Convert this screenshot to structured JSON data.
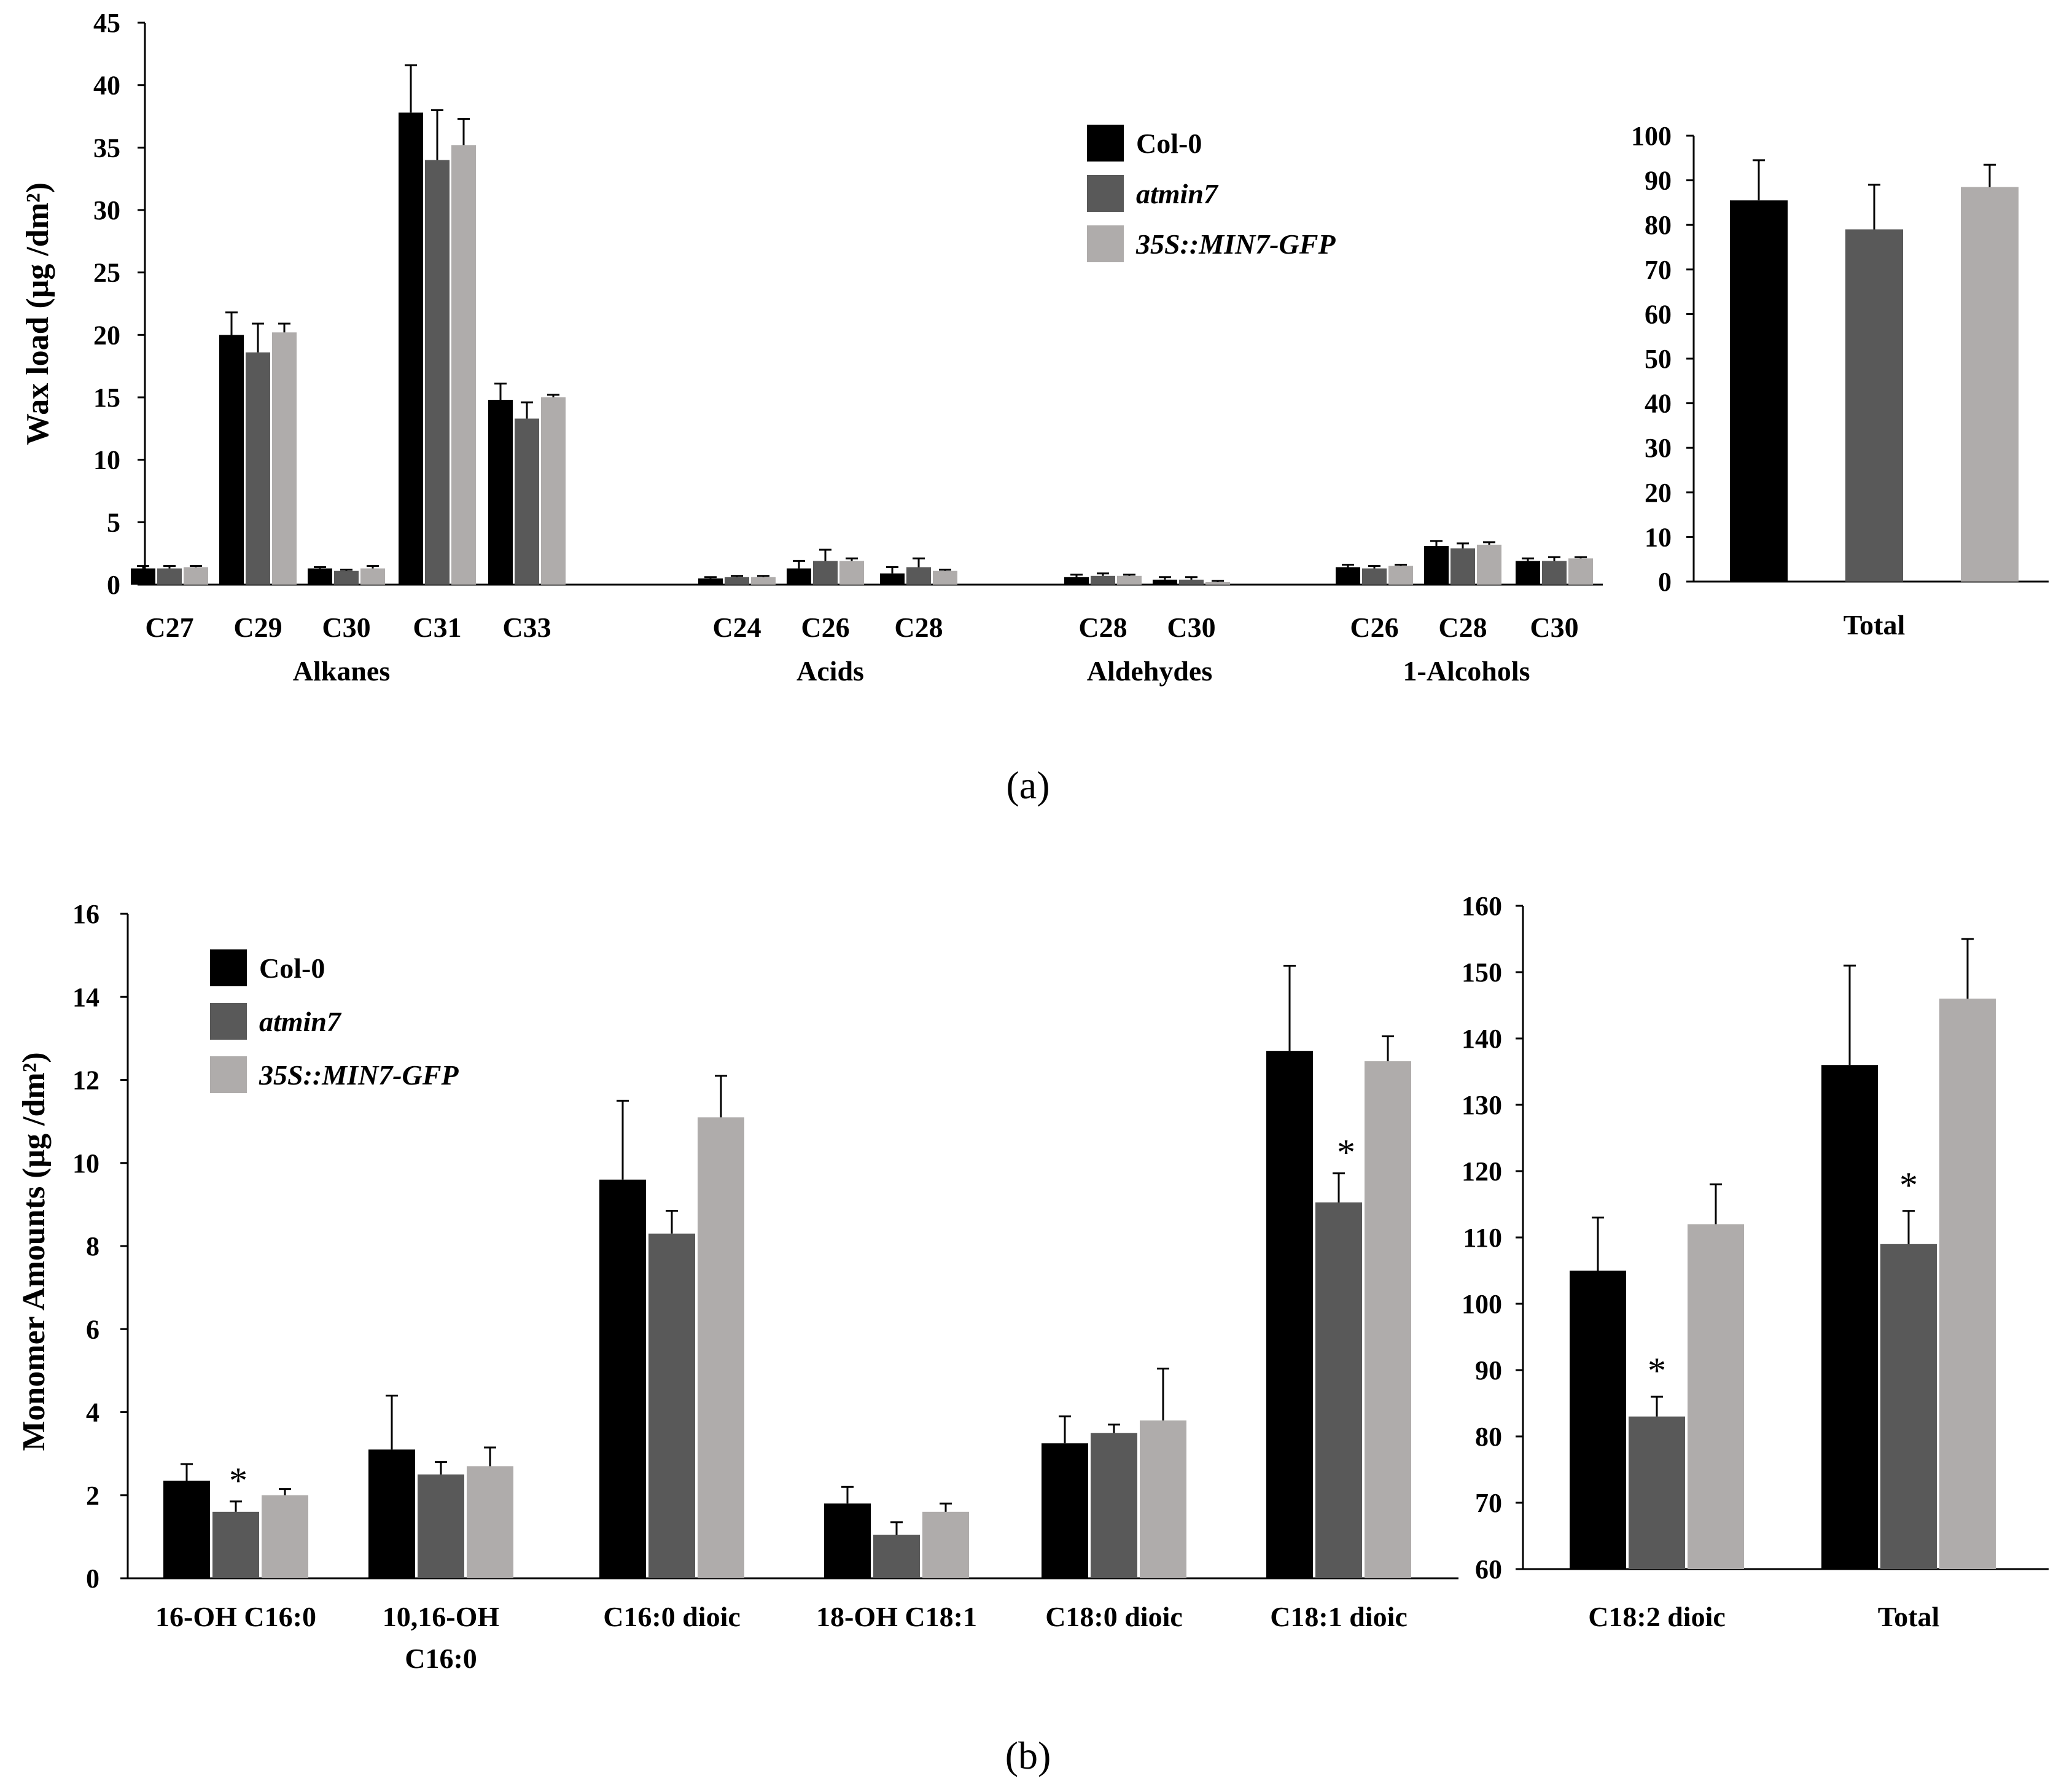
{
  "figure": {
    "panel_a_letter": "(a)",
    "panel_b_letter": "(b)"
  },
  "chart_data": [
    {
      "id": "a-main",
      "type": "bar",
      "panel": "a",
      "ylabel": "Wax load (μg /dm²)",
      "ylim": [
        0,
        45
      ],
      "yticks": [
        0,
        5,
        10,
        15,
        20,
        25,
        30,
        35,
        40,
        45
      ],
      "legend": {
        "placement": "top-center",
        "entries": [
          "Col-0",
          "atmin7",
          "35S::MIN7-GFP"
        ]
      },
      "series": [
        {
          "name": "Col-0",
          "color": "#000000"
        },
        {
          "name": "atmin7",
          "color": "#595959"
        },
        {
          "name": "35S::MIN7-GFP",
          "color": "#afacab"
        }
      ],
      "groups": [
        {
          "label": "Alkanes",
          "categories": [
            {
              "label": "C27",
              "values": [
                1.3,
                1.3,
                1.4
              ],
              "errors": [
                0.2,
                0.2,
                0.1
              ]
            },
            {
              "label": "C29",
              "values": [
                20.0,
                18.6,
                20.2
              ],
              "errors": [
                1.8,
                2.3,
                0.7
              ]
            },
            {
              "label": "C30",
              "values": [
                1.3,
                1.1,
                1.3
              ],
              "errors": [
                0.1,
                0.1,
                0.2
              ]
            },
            {
              "label": "C31",
              "values": [
                37.8,
                34.0,
                35.2
              ],
              "errors": [
                3.8,
                4.0,
                2.1
              ]
            },
            {
              "label": "C33",
              "values": [
                14.8,
                13.3,
                15.0
              ],
              "errors": [
                1.3,
                1.3,
                0.2
              ]
            }
          ]
        },
        {
          "label": "Acids",
          "categories": [
            {
              "label": "C24",
              "values": [
                0.5,
                0.6,
                0.6
              ],
              "errors": [
                0.1,
                0.1,
                0.1
              ]
            },
            {
              "label": "C26",
              "values": [
                1.3,
                1.9,
                1.9
              ],
              "errors": [
                0.6,
                0.9,
                0.2
              ]
            },
            {
              "label": "C28",
              "values": [
                0.9,
                1.4,
                1.1
              ],
              "errors": [
                0.5,
                0.7,
                0.1
              ]
            }
          ]
        },
        {
          "label": "Aldehydes",
          "categories": [
            {
              "label": "C28",
              "values": [
                0.6,
                0.7,
                0.7
              ],
              "errors": [
                0.2,
                0.2,
                0.1
              ]
            },
            {
              "label": "C30",
              "values": [
                0.4,
                0.4,
                0.2
              ],
              "errors": [
                0.2,
                0.2,
                0.1
              ]
            }
          ]
        },
        {
          "label": "1-Alcohols",
          "categories": [
            {
              "label": "C26",
              "values": [
                1.4,
                1.3,
                1.5
              ],
              "errors": [
                0.2,
                0.2,
                0.1
              ]
            },
            {
              "label": "C28",
              "values": [
                3.1,
                2.9,
                3.2
              ],
              "errors": [
                0.4,
                0.4,
                0.2
              ]
            },
            {
              "label": "C30",
              "values": [
                1.9,
                1.9,
                2.1
              ],
              "errors": [
                0.2,
                0.3,
                0.1
              ]
            }
          ]
        }
      ]
    },
    {
      "id": "a-total",
      "type": "bar",
      "panel": "a",
      "ylim": [
        0,
        100
      ],
      "yticks": [
        0,
        10,
        20,
        30,
        40,
        50,
        60,
        70,
        80,
        90,
        100
      ],
      "categories": [
        {
          "label": "Total",
          "values": [
            85.5,
            79.0,
            88.5
          ],
          "errors": [
            9.0,
            10.0,
            5.0
          ]
        }
      ]
    },
    {
      "id": "b-main",
      "type": "bar",
      "panel": "b",
      "ylabel": "Monomer Amounts (μg /dm²)",
      "ylim": [
        0,
        16
      ],
      "yticks": [
        0,
        2,
        4,
        6,
        8,
        10,
        12,
        14,
        16
      ],
      "legend": {
        "placement": "top-left",
        "entries": [
          "Col-0",
          "atmin7",
          "35S::MIN7-GFP"
        ]
      },
      "categories": [
        {
          "label": "16-OH C16:0",
          "values": [
            2.35,
            1.6,
            2.0
          ],
          "errors": [
            0.4,
            0.25,
            0.15
          ],
          "stars": [
            false,
            true,
            false
          ]
        },
        {
          "label": "10,16-OH",
          "label2": "C16:0",
          "values": [
            3.1,
            2.5,
            2.7
          ],
          "errors": [
            1.3,
            0.3,
            0.45
          ],
          "stars": [
            false,
            false,
            false
          ]
        },
        {
          "label": "C16:0 dioic",
          "values": [
            9.6,
            8.3,
            11.1
          ],
          "errors": [
            1.9,
            0.55,
            1.0
          ],
          "stars": [
            false,
            false,
            false
          ]
        },
        {
          "label": "18-OH C18:1",
          "values": [
            1.8,
            1.05,
            1.6
          ],
          "errors": [
            0.4,
            0.3,
            0.2
          ],
          "stars": [
            false,
            false,
            false
          ]
        },
        {
          "label": "C18:0 dioic",
          "values": [
            3.25,
            3.5,
            3.8
          ],
          "errors": [
            0.65,
            0.2,
            1.25
          ],
          "stars": [
            false,
            false,
            false
          ]
        },
        {
          "label": "C18:1 dioic",
          "values": [
            12.7,
            9.05,
            12.45
          ],
          "errors": [
            2.05,
            0.7,
            0.6
          ],
          "stars": [
            false,
            true,
            false
          ]
        }
      ]
    },
    {
      "id": "b-right",
      "type": "bar",
      "panel": "b",
      "ylim": [
        60,
        160
      ],
      "yticks": [
        60,
        70,
        80,
        90,
        100,
        110,
        120,
        130,
        140,
        150,
        160
      ],
      "categories": [
        {
          "label": "C18:2 dioic",
          "values": [
            105,
            83,
            112
          ],
          "errors": [
            8,
            3,
            6
          ],
          "stars": [
            false,
            true,
            false
          ]
        },
        {
          "label": "Total",
          "values": [
            136,
            109,
            146
          ],
          "errors": [
            15,
            5,
            9
          ],
          "stars": [
            false,
            true,
            false
          ]
        }
      ]
    }
  ]
}
